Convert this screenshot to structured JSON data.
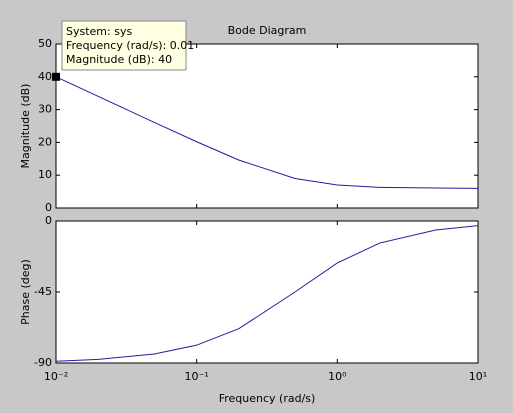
{
  "chart_data": [
    {
      "type": "line",
      "title": "Bode Diagram",
      "ylabel": "Magnitude (dB)",
      "xscale": "log",
      "x": [
        0.01,
        0.02,
        0.05,
        0.1,
        0.2,
        0.5,
        1,
        2,
        5,
        10
      ],
      "series": [
        {
          "name": "sys",
          "color": "#1f1f9f",
          "values": [
            40.0,
            34.0,
            26.1,
            20.2,
            14.6,
            9.0,
            7.0,
            6.3,
            6.1,
            6.0
          ]
        }
      ],
      "xlim": [
        0.01,
        10
      ],
      "xticks": [
        0.01,
        0.1,
        1,
        10
      ],
      "ylim": [
        0,
        50
      ],
      "yticks": [
        0,
        10,
        20,
        30,
        40,
        50
      ],
      "annotation": {
        "lines": [
          "System: sys",
          "Frequency (rad/s): 0.01",
          "Magnitude (dB): 40"
        ]
      }
    },
    {
      "type": "line",
      "ylabel": "Phase (deg)",
      "xlabel": "Frequency  (rad/s)",
      "xscale": "log",
      "x": [
        0.01,
        0.02,
        0.05,
        0.1,
        0.2,
        0.5,
        1,
        2,
        5,
        10
      ],
      "series": [
        {
          "name": "sys",
          "color": "#1f1f9f",
          "values": [
            -88.9,
            -87.7,
            -84.3,
            -78.7,
            -68.2,
            -45.0,
            -26.6,
            -14.0,
            -5.7,
            -2.9
          ]
        }
      ],
      "xlim": [
        0.01,
        10
      ],
      "xticks": [
        {
          "value": 0.01,
          "label": "10⁻²"
        },
        {
          "value": 0.1,
          "label": "10⁻¹"
        },
        {
          "value": 1,
          "label": "10⁰"
        },
        {
          "value": 10,
          "label": "10¹"
        }
      ],
      "ylim": [
        -90,
        0
      ],
      "yticks": [
        -90,
        -45,
        0
      ]
    }
  ]
}
